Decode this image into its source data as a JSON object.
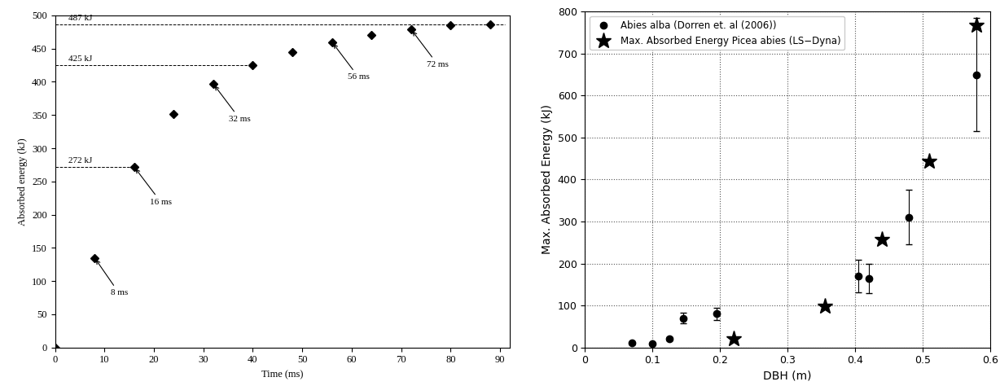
{
  "chart_data": [
    {
      "type": "scatter",
      "x_label": "Time (ms)",
      "y_label": "Absorbed energy (kJ)",
      "x": [
        0,
        8,
        16,
        24,
        32,
        40,
        48,
        56,
        64,
        72,
        80,
        88
      ],
      "values": [
        0,
        135,
        272,
        352,
        397,
        425,
        445,
        460,
        471,
        479,
        485,
        487
      ],
      "color": "#000000",
      "marker": "diamond",
      "xlim": [
        0,
        92
      ],
      "ylim": [
        0,
        500
      ],
      "xticks": [
        0,
        10,
        20,
        30,
        40,
        50,
        60,
        70,
        80,
        90
      ],
      "yticks": [
        0,
        50,
        100,
        150,
        200,
        250,
        300,
        350,
        400,
        450,
        500
      ],
      "grid": false,
      "reference_lines": [
        {
          "value": 487,
          "label": "487 kJ",
          "x_end": 91
        },
        {
          "value": 425,
          "label": "425 kJ",
          "x_end": 40
        },
        {
          "value": 272,
          "label": "272 kJ",
          "x_end": 16
        }
      ],
      "annotations": [
        {
          "x": 8,
          "text": "8 ms"
        },
        {
          "x": 16,
          "text": "16 ms"
        },
        {
          "x": 32,
          "text": "32 ms"
        },
        {
          "x": 56,
          "text": "56 ms"
        },
        {
          "x": 72,
          "text": "72 ms"
        }
      ]
    },
    {
      "type": "scatter",
      "x_label": "DBH (m)",
      "y_label": "Max. Absorbed Energy (kJ)",
      "xlim": [
        0,
        0.6
      ],
      "ylim": [
        0,
        800
      ],
      "xticks": [
        0,
        0.1,
        0.2,
        0.3,
        0.4,
        0.5,
        0.6
      ],
      "yticks": [
        0,
        100,
        200,
        300,
        400,
        500,
        600,
        700,
        800
      ],
      "grid": true,
      "legend": "upper left",
      "series": [
        {
          "name": "Abies alba (Dorren et. al (2006))",
          "color": "#000000",
          "marker": "circle",
          "x": [
            0.07,
            0.1,
            0.125,
            0.145,
            0.195,
            0.405,
            0.42,
            0.48,
            0.58
          ],
          "values": [
            10,
            8,
            20,
            70,
            80,
            170,
            165,
            310,
            650
          ],
          "errors": [
            3,
            3,
            4,
            12,
            15,
            38,
            35,
            65,
            135
          ]
        },
        {
          "name": "Max. Absorbed Energy Picea abies (LS−Dyna)",
          "color": "#000000",
          "marker": "star",
          "x": [
            0.22,
            0.355,
            0.44,
            0.51,
            0.58
          ],
          "values": [
            20,
            98,
            258,
            443,
            768
          ]
        }
      ]
    }
  ]
}
